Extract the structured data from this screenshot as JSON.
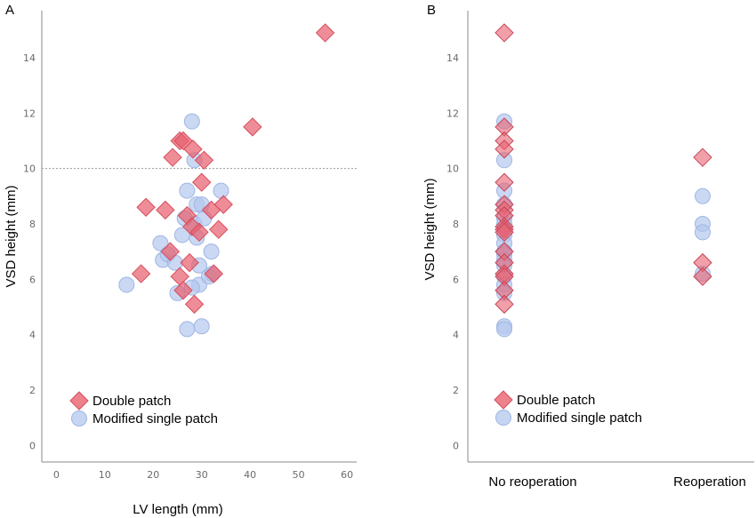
{
  "colors": {
    "double_patch": "#e8616f",
    "modified_single_patch": "#b3c8ee",
    "axis": "#8a8a8a",
    "tick_text": "#6b6b6b"
  },
  "chart_data": [
    {
      "panel": "A",
      "type": "scatter",
      "xlabel": "LV length (mm)",
      "ylabel": "VSD height (mm)",
      "xlim": [
        -3,
        62
      ],
      "ylim": [
        -0.6,
        15.7
      ],
      "x_ticks": [
        0,
        10,
        20,
        30,
        40,
        50,
        60
      ],
      "y_ticks": [
        0,
        2,
        4,
        6,
        8,
        10,
        12,
        14
      ],
      "reference_line_y": 10,
      "grid": false,
      "legend_position": "bottom-left",
      "series": [
        {
          "name": "Double patch",
          "marker": "diamond",
          "color": "#e8616f",
          "points": [
            [
              17.5,
              6.2
            ],
            [
              18.5,
              8.6
            ],
            [
              22.5,
              8.5
            ],
            [
              23.5,
              7.0
            ],
            [
              24.0,
              10.4
            ],
            [
              25.5,
              11.0
            ],
            [
              26.2,
              11.0
            ],
            [
              25.5,
              6.1
            ],
            [
              26.2,
              5.6
            ],
            [
              27.0,
              8.3
            ],
            [
              27.5,
              6.6
            ],
            [
              28.2,
              10.7
            ],
            [
              28.0,
              7.9
            ],
            [
              28.5,
              5.1
            ],
            [
              29.5,
              7.7
            ],
            [
              30.0,
              9.5
            ],
            [
              30.5,
              10.3
            ],
            [
              32.0,
              8.5
            ],
            [
              32.5,
              6.2
            ],
            [
              33.5,
              7.8
            ],
            [
              34.5,
              8.7
            ],
            [
              40.5,
              11.5
            ],
            [
              55.5,
              14.9
            ]
          ]
        },
        {
          "name": "Modified single patch",
          "marker": "circle",
          "color": "#b3c8ee",
          "points": [
            [
              14.5,
              5.8
            ],
            [
              21.5,
              7.3
            ],
            [
              22.0,
              6.7
            ],
            [
              23.0,
              6.9
            ],
            [
              25.0,
              5.5
            ],
            [
              26.0,
              7.6
            ],
            [
              27.0,
              9.2
            ],
            [
              27.0,
              4.2
            ],
            [
              28.0,
              11.7
            ],
            [
              28.5,
              10.3
            ],
            [
              28.5,
              8.0
            ],
            [
              29.0,
              7.5
            ],
            [
              29.0,
              8.7
            ],
            [
              29.5,
              6.5
            ],
            [
              29.5,
              5.8
            ],
            [
              30.0,
              4.3
            ],
            [
              30.5,
              8.2
            ],
            [
              31.5,
              6.1
            ],
            [
              32.0,
              7.0
            ],
            [
              34.0,
              9.2
            ],
            [
              30.0,
              8.7
            ],
            [
              26.5,
              8.2
            ],
            [
              24.5,
              6.6
            ],
            [
              28.0,
              5.7
            ],
            [
              32.2,
              6.2
            ]
          ]
        }
      ]
    },
    {
      "panel": "B",
      "type": "scatter",
      "xlabel": "",
      "ylabel": "VSD height (mm)",
      "categories": [
        "No reoperation",
        "Reoperation"
      ],
      "ylim": [
        -0.6,
        15.7
      ],
      "y_ticks": [
        0,
        2,
        4,
        6,
        8,
        10,
        12,
        14
      ],
      "grid": false,
      "legend_position": "bottom-left",
      "series": [
        {
          "name": "Double patch",
          "marker": "diamond",
          "color": "#e8616f",
          "points": [
            [
              "No reoperation",
              14.9
            ],
            [
              "No reoperation",
              11.5
            ],
            [
              "No reoperation",
              11.0
            ],
            [
              "No reoperation",
              10.7
            ],
            [
              "No reoperation",
              9.5
            ],
            [
              "No reoperation",
              8.7
            ],
            [
              "No reoperation",
              8.5
            ],
            [
              "No reoperation",
              8.3
            ],
            [
              "No reoperation",
              7.9
            ],
            [
              "No reoperation",
              7.8
            ],
            [
              "No reoperation",
              7.7
            ],
            [
              "No reoperation",
              7.0
            ],
            [
              "No reoperation",
              6.6
            ],
            [
              "No reoperation",
              6.2
            ],
            [
              "No reoperation",
              6.1
            ],
            [
              "No reoperation",
              5.6
            ],
            [
              "No reoperation",
              5.1
            ],
            [
              "Reoperation",
              10.4
            ],
            [
              "Reoperation",
              6.6
            ],
            [
              "Reoperation",
              6.1
            ]
          ]
        },
        {
          "name": "Modified single patch",
          "marker": "circle",
          "color": "#b3c8ee",
          "points": [
            [
              "No reoperation",
              11.7
            ],
            [
              "No reoperation",
              10.3
            ],
            [
              "No reoperation",
              9.2
            ],
            [
              "No reoperation",
              8.7
            ],
            [
              "No reoperation",
              8.2
            ],
            [
              "No reoperation",
              8.0
            ],
            [
              "No reoperation",
              7.6
            ],
            [
              "No reoperation",
              7.3
            ],
            [
              "No reoperation",
              7.0
            ],
            [
              "No reoperation",
              6.9
            ],
            [
              "No reoperation",
              6.7
            ],
            [
              "No reoperation",
              6.5
            ],
            [
              "No reoperation",
              6.1
            ],
            [
              "No reoperation",
              5.8
            ],
            [
              "No reoperation",
              5.5
            ],
            [
              "No reoperation",
              4.3
            ],
            [
              "No reoperation",
              4.2
            ],
            [
              "Reoperation",
              9.0
            ],
            [
              "Reoperation",
              8.0
            ],
            [
              "Reoperation",
              7.7
            ],
            [
              "Reoperation",
              6.2
            ]
          ]
        }
      ]
    }
  ]
}
